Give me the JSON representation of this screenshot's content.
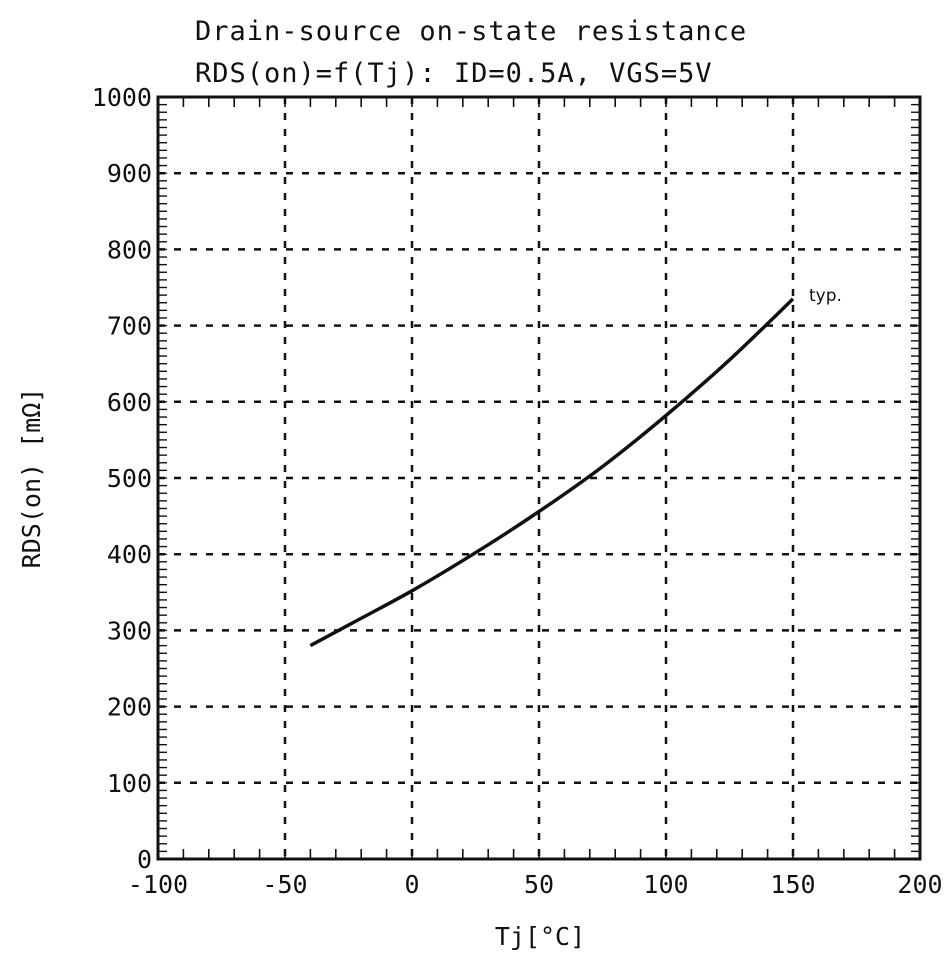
{
  "chart_data": {
    "type": "line",
    "title": "Drain-source on-state resistance",
    "subtitle": "RDS(on)=f(Tj): ID=0.5A, VGS=5V",
    "xlabel": "Tj[°C]",
    "ylabel": "RDS(on) [mΩ]",
    "xlim": [
      -100,
      200
    ],
    "ylim": [
      0,
      1000
    ],
    "xticks": [
      -100,
      -50,
      0,
      50,
      100,
      150,
      200
    ],
    "yticks": [
      0,
      100,
      200,
      300,
      400,
      500,
      600,
      700,
      800,
      900,
      1000
    ],
    "xtick_labels": [
      "-100",
      "-50",
      "0",
      "50",
      "100",
      "150",
      "200"
    ],
    "ytick_labels": [
      "0",
      "100",
      "200",
      "300",
      "400",
      "500",
      "600",
      "700",
      "800",
      "900",
      "1000"
    ],
    "grid": true,
    "series": [
      {
        "name": "typ.",
        "x": [
          -40,
          -25,
          0,
          25,
          50,
          75,
          100,
          125,
          150
        ],
        "y": [
          280,
          307,
          352,
          402,
          456,
          515,
          582,
          655,
          735
        ]
      }
    ]
  }
}
